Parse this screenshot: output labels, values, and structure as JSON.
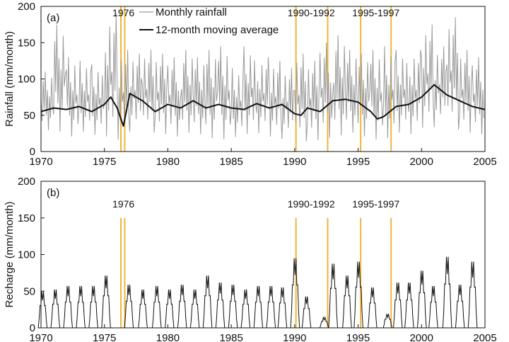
{
  "chart_data": [
    {
      "type": "line",
      "panel_label": "(a)",
      "xlabel": "",
      "ylabel": "Rainfall (mm/month)",
      "xlim": [
        1970,
        2005
      ],
      "ylim": [
        0,
        200
      ],
      "xticks": [
        1970,
        1975,
        1980,
        1985,
        1990,
        1995,
        2000,
        2005
      ],
      "yticks": [
        0,
        50,
        100,
        150,
        200
      ],
      "legend": {
        "placement": "top-left",
        "entries": [
          {
            "label": "Monthly rainfall",
            "color": "#9a9a9a"
          },
          {
            "label": "12-month moving average",
            "color": "#111111"
          }
        ]
      },
      "event_lines": [
        1976.3,
        1976.6,
        1990.1,
        1992.6,
        1995.2,
        1997.6
      ],
      "event_color": "#f2b53a",
      "event_labels": [
        {
          "text": "1976",
          "x": 1976.5
        },
        {
          "text": "1990-1992",
          "x": 1991.3
        },
        {
          "text": "1995-1997",
          "x": 1996.4
        }
      ],
      "series": [
        {
          "name": "Monthly rainfall",
          "color": "#9a9a9a",
          "note": "Monthly series approximated by an annual envelope (min, max per year) of the plotted values.",
          "x": [
            1970,
            1971,
            1972,
            1973,
            1974,
            1975,
            1976,
            1977,
            1978,
            1979,
            1980,
            1981,
            1982,
            1983,
            1984,
            1985,
            1986,
            1987,
            1988,
            1989,
            1990,
            1991,
            1992,
            1993,
            1994,
            1995,
            1996,
            1997,
            1998,
            1999,
            2000,
            2001,
            2002,
            2003,
            2004
          ],
          "min": [
            25,
            20,
            15,
            22,
            18,
            12,
            10,
            22,
            20,
            18,
            15,
            20,
            18,
            12,
            10,
            15,
            18,
            20,
            15,
            12,
            8,
            10,
            12,
            15,
            20,
            15,
            10,
            12,
            20,
            18,
            25,
            28,
            22,
            20,
            18
          ],
          "max": [
            110,
            175,
            130,
            125,
            120,
            190,
            140,
            135,
            140,
            135,
            130,
            140,
            130,
            140,
            145,
            115,
            145,
            130,
            125,
            115,
            135,
            125,
            150,
            160,
            140,
            135,
            140,
            145,
            140,
            140,
            175,
            145,
            185,
            140,
            130
          ]
        },
        {
          "name": "12-month moving average",
          "color": "#111111",
          "x": [
            1970,
            1971,
            1972,
            1973,
            1974,
            1975,
            1975.5,
            1976,
            1976.5,
            1977,
            1978,
            1979,
            1980,
            1981,
            1982,
            1983,
            1984,
            1985,
            1986,
            1987,
            1988,
            1989,
            1990,
            1990.5,
            1991,
            1992,
            1993,
            1994,
            1995,
            1996,
            1996.5,
            1997,
            1998,
            1999,
            2000,
            2001,
            2002,
            2003,
            2004,
            2005
          ],
          "values": [
            55,
            60,
            58,
            62,
            55,
            65,
            75,
            60,
            35,
            80,
            70,
            55,
            65,
            60,
            70,
            60,
            65,
            60,
            58,
            66,
            60,
            65,
            52,
            50,
            60,
            55,
            70,
            72,
            68,
            55,
            45,
            48,
            62,
            65,
            75,
            92,
            78,
            70,
            62,
            58
          ]
        }
      ]
    },
    {
      "type": "line",
      "panel_label": "(b)",
      "xlabel": "",
      "ylabel": "Recharge (mm/month)",
      "xlim": [
        1970,
        2005
      ],
      "ylim": [
        0,
        200
      ],
      "xticks": [
        1970,
        1975,
        1980,
        1985,
        1990,
        1995,
        2000,
        2005
      ],
      "yticks": [
        0,
        50,
        100,
        150,
        200
      ],
      "event_lines": [
        1976.3,
        1976.6,
        1990.1,
        1992.6,
        1995.2,
        1997.6
      ],
      "event_color": "#f2b53a",
      "event_line_top": 150,
      "event_labels": [
        {
          "text": "1976",
          "x": 1976.5
        },
        {
          "text": "1990-1992",
          "x": 1991.3
        },
        {
          "text": "1995-1997",
          "x": 1996.4
        }
      ],
      "series": [
        {
          "name": "Recharge",
          "color": "#111111",
          "note": "Winter recharge peaks per year (approximate), zero in summer.",
          "peak_x": [
            1970.1,
            1971.1,
            1972.1,
            1973.1,
            1974.1,
            1975.1,
            1976.9,
            1978.0,
            1979.1,
            1980.1,
            1981.1,
            1982.1,
            1983.1,
            1984.1,
            1985.1,
            1986.1,
            1987.1,
            1988.1,
            1989.0,
            1990.0,
            1990.9,
            1992.3,
            1993.0,
            1994.1,
            1995.0,
            1996.1,
            1997.3,
            1998.1,
            1999.0,
            2000.0,
            2000.9,
            2002.0,
            2003.0,
            2004.0
          ],
          "peak_values": [
            52,
            55,
            60,
            60,
            60,
            75,
            62,
            55,
            60,
            55,
            62,
            55,
            75,
            65,
            62,
            55,
            60,
            60,
            58,
            100,
            45,
            15,
            92,
            75,
            95,
            58,
            20,
            65,
            65,
            82,
            60,
            102,
            62,
            95
          ]
        }
      ]
    }
  ]
}
